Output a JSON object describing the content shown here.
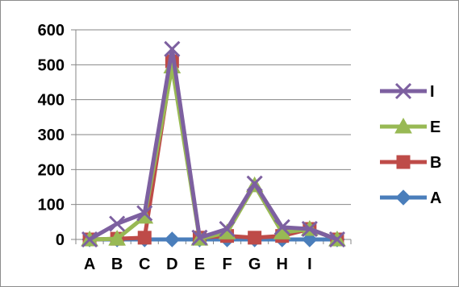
{
  "chart_data": {
    "type": "line",
    "categories": [
      "A",
      "B",
      "C",
      "D",
      "E",
      "F",
      "G",
      "H",
      "I",
      ""
    ],
    "ylim": [
      0,
      600
    ],
    "yticks": [
      0,
      100,
      200,
      300,
      400,
      500,
      600
    ],
    "grid": true,
    "legend_position": "right",
    "series": [
      {
        "name": "A",
        "color": "#4a7ebb",
        "marker": "diamond",
        "values": [
          0,
          0,
          0,
          0,
          0,
          0,
          0,
          0,
          0,
          0
        ]
      },
      {
        "name": "B",
        "color": "#be4b48",
        "marker": "square",
        "values": [
          0,
          2,
          5,
          510,
          5,
          10,
          5,
          10,
          30,
          0
        ]
      },
      {
        "name": "E",
        "color": "#98b954",
        "marker": "triangle",
        "values": [
          0,
          2,
          65,
          495,
          2,
          20,
          155,
          20,
          30,
          0
        ]
      },
      {
        "name": "I",
        "color": "#7d60a0",
        "marker": "x",
        "values": [
          0,
          45,
          75,
          545,
          5,
          30,
          160,
          35,
          30,
          0
        ]
      }
    ]
  }
}
